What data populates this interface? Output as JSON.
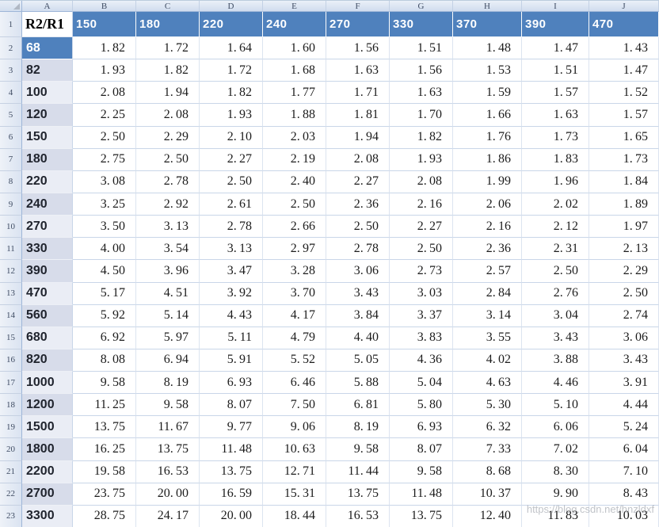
{
  "spreadsheet": {
    "column_letters": [
      "A",
      "B",
      "C",
      "D",
      "E",
      "F",
      "G",
      "H",
      "I",
      "J"
    ],
    "header_row": {
      "row_number": "1",
      "corner_label": "R2/R1",
      "values": [
        "150",
        "180",
        "220",
        "240",
        "270",
        "330",
        "370",
        "390",
        "470"
      ]
    },
    "rows": [
      {
        "n": "2",
        "label": "68",
        "highlight": true,
        "shaded": false,
        "values": [
          "1.82",
          "1.72",
          "1.64",
          "1.60",
          "1.56",
          "1.51",
          "1.48",
          "1.47",
          "1.43"
        ]
      },
      {
        "n": "3",
        "label": "82",
        "highlight": false,
        "shaded": true,
        "values": [
          "1.93",
          "1.82",
          "1.72",
          "1.68",
          "1.63",
          "1.56",
          "1.53",
          "1.51",
          "1.47"
        ]
      },
      {
        "n": "4",
        "label": "100",
        "highlight": false,
        "shaded": false,
        "values": [
          "2.08",
          "1.94",
          "1.82",
          "1.77",
          "1.71",
          "1.63",
          "1.59",
          "1.57",
          "1.52"
        ]
      },
      {
        "n": "5",
        "label": "120",
        "highlight": false,
        "shaded": true,
        "values": [
          "2.25",
          "2.08",
          "1.93",
          "1.88",
          "1.81",
          "1.70",
          "1.66",
          "1.63",
          "1.57"
        ]
      },
      {
        "n": "6",
        "label": "150",
        "highlight": false,
        "shaded": false,
        "values": [
          "2.50",
          "2.29",
          "2.10",
          "2.03",
          "1.94",
          "1.82",
          "1.76",
          "1.73",
          "1.65"
        ]
      },
      {
        "n": "7",
        "label": "180",
        "highlight": false,
        "shaded": true,
        "values": [
          "2.75",
          "2.50",
          "2.27",
          "2.19",
          "2.08",
          "1.93",
          "1.86",
          "1.83",
          "1.73"
        ]
      },
      {
        "n": "8",
        "label": "220",
        "highlight": false,
        "shaded": false,
        "values": [
          "3.08",
          "2.78",
          "2.50",
          "2.40",
          "2.27",
          "2.08",
          "1.99",
          "1.96",
          "1.84"
        ]
      },
      {
        "n": "9",
        "label": "240",
        "highlight": false,
        "shaded": true,
        "values": [
          "3.25",
          "2.92",
          "2.61",
          "2.50",
          "2.36",
          "2.16",
          "2.06",
          "2.02",
          "1.89"
        ]
      },
      {
        "n": "10",
        "label": "270",
        "highlight": false,
        "shaded": false,
        "values": [
          "3.50",
          "3.13",
          "2.78",
          "2.66",
          "2.50",
          "2.27",
          "2.16",
          "2.12",
          "1.97"
        ]
      },
      {
        "n": "11",
        "label": "330",
        "highlight": false,
        "shaded": true,
        "values": [
          "4.00",
          "3.54",
          "3.13",
          "2.97",
          "2.78",
          "2.50",
          "2.36",
          "2.31",
          "2.13"
        ]
      },
      {
        "n": "12",
        "label": "390",
        "highlight": false,
        "shaded": true,
        "values": [
          "4.50",
          "3.96",
          "3.47",
          "3.28",
          "3.06",
          "2.73",
          "2.57",
          "2.50",
          "2.29"
        ]
      },
      {
        "n": "13",
        "label": "470",
        "highlight": false,
        "shaded": false,
        "values": [
          "5.17",
          "4.51",
          "3.92",
          "3.70",
          "3.43",
          "3.03",
          "2.84",
          "2.76",
          "2.50"
        ]
      },
      {
        "n": "14",
        "label": "560",
        "highlight": false,
        "shaded": true,
        "values": [
          "5.92",
          "5.14",
          "4.43",
          "4.17",
          "3.84",
          "3.37",
          "3.14",
          "3.04",
          "2.74"
        ]
      },
      {
        "n": "15",
        "label": "680",
        "highlight": false,
        "shaded": false,
        "values": [
          "6.92",
          "5.97",
          "5.11",
          "4.79",
          "4.40",
          "3.83",
          "3.55",
          "3.43",
          "3.06"
        ]
      },
      {
        "n": "16",
        "label": "820",
        "highlight": false,
        "shaded": true,
        "values": [
          "8.08",
          "6.94",
          "5.91",
          "5.52",
          "5.05",
          "4.36",
          "4.02",
          "3.88",
          "3.43"
        ]
      },
      {
        "n": "17",
        "label": "1000",
        "highlight": false,
        "shaded": false,
        "values": [
          "9.58",
          "8.19",
          "6.93",
          "6.46",
          "5.88",
          "5.04",
          "4.63",
          "4.46",
          "3.91"
        ]
      },
      {
        "n": "18",
        "label": "1200",
        "highlight": false,
        "shaded": true,
        "values": [
          "11.25",
          "9.58",
          "8.07",
          "7.50",
          "6.81",
          "5.80",
          "5.30",
          "5.10",
          "4.44"
        ]
      },
      {
        "n": "19",
        "label": "1500",
        "highlight": false,
        "shaded": false,
        "values": [
          "13.75",
          "11.67",
          "9.77",
          "9.06",
          "8.19",
          "6.93",
          "6.32",
          "6.06",
          "5.24"
        ]
      },
      {
        "n": "20",
        "label": "1800",
        "highlight": false,
        "shaded": true,
        "values": [
          "16.25",
          "13.75",
          "11.48",
          "10.63",
          "9.58",
          "8.07",
          "7.33",
          "7.02",
          "6.04"
        ]
      },
      {
        "n": "21",
        "label": "2200",
        "highlight": false,
        "shaded": false,
        "values": [
          "19.58",
          "16.53",
          "13.75",
          "12.71",
          "11.44",
          "9.58",
          "8.68",
          "8.30",
          "7.10"
        ]
      },
      {
        "n": "22",
        "label": "2700",
        "highlight": false,
        "shaded": true,
        "values": [
          "23.75",
          "20.00",
          "16.59",
          "15.31",
          "13.75",
          "11.48",
          "10.37",
          "9.90",
          "8.43"
        ]
      },
      {
        "n": "23",
        "label": "3300",
        "highlight": false,
        "shaded": false,
        "values": [
          "28.75",
          "24.17",
          "20.00",
          "18.44",
          "16.53",
          "13.75",
          "12.40",
          "11.83",
          "10.03"
        ]
      }
    ]
  },
  "watermark": "https://blog.csdn.net/hnzldxf",
  "colors": {
    "header_blue": "#4f81bd",
    "band_shaded": "#d7dcea",
    "band_light": "#eaedf5",
    "gridline": "#c9d6e8",
    "gutter_border": "#9eb6d8"
  }
}
